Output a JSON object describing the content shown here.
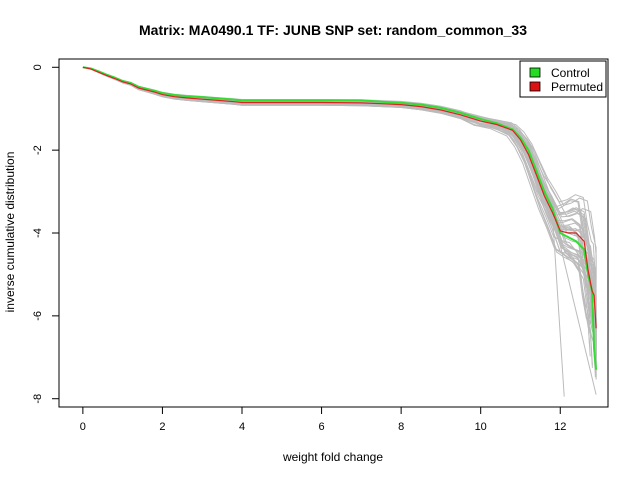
{
  "chart_data": {
    "type": "line",
    "title": "Matrix: MA0490.1 TF: JUNB SNP set: random_common_33",
    "xlabel": "weight fold change",
    "ylabel": "inverse cumulative distribution",
    "xlim": [
      -0.6,
      13.2
    ],
    "ylim": [
      -8.2,
      0.2
    ],
    "xticks": [
      0,
      2,
      4,
      6,
      8,
      10,
      12
    ],
    "yticks": [
      0,
      -2,
      -4,
      -6,
      -8
    ],
    "legend_position": "top-right",
    "legend": [
      {
        "label": "Control",
        "color": "#22dd22"
      },
      {
        "label": "Permuted",
        "color": "#dd1111"
      }
    ],
    "series": [
      {
        "name": "Control",
        "color": "#33dd33",
        "x": [
          0,
          0.2,
          0.4,
          0.6,
          0.8,
          1.0,
          1.2,
          1.4,
          1.6,
          1.8,
          2.0,
          2.3,
          2.6,
          3.0,
          3.4,
          3.8,
          4.0,
          5.0,
          6.0,
          7.0,
          7.5,
          8.0,
          8.5,
          9.0,
          9.5,
          10.0,
          10.4,
          10.8,
          11.0,
          11.2,
          11.4,
          11.6,
          11.8,
          12.0,
          12.2,
          12.4,
          12.6,
          12.7,
          12.8,
          12.85,
          12.9
        ],
        "y": [
          0,
          -0.03,
          -0.1,
          -0.18,
          -0.25,
          -0.33,
          -0.38,
          -0.47,
          -0.52,
          -0.57,
          -0.62,
          -0.67,
          -0.7,
          -0.72,
          -0.75,
          -0.78,
          -0.8,
          -0.8,
          -0.8,
          -0.8,
          -0.83,
          -0.86,
          -0.9,
          -0.98,
          -1.1,
          -1.25,
          -1.35,
          -1.5,
          -1.7,
          -2.0,
          -2.5,
          -3.0,
          -3.4,
          -4.0,
          -4.1,
          -4.2,
          -4.4,
          -5.0,
          -5.4,
          -6.8,
          -7.3
        ]
      },
      {
        "name": "Permuted",
        "color": "#dd2222",
        "x": [
          0,
          0.2,
          0.4,
          0.6,
          0.8,
          1.0,
          1.2,
          1.4,
          1.6,
          1.8,
          2.0,
          2.3,
          2.6,
          3.0,
          3.4,
          3.8,
          4.0,
          5.0,
          6.0,
          7.0,
          7.5,
          8.0,
          8.5,
          9.0,
          9.5,
          10.0,
          10.4,
          10.8,
          11.0,
          11.2,
          11.4,
          11.6,
          11.8,
          12.0,
          12.2,
          12.4,
          12.6,
          12.7,
          12.8,
          12.85,
          12.9
        ],
        "y": [
          0,
          -0.04,
          -0.12,
          -0.2,
          -0.27,
          -0.35,
          -0.4,
          -0.5,
          -0.55,
          -0.6,
          -0.66,
          -0.71,
          -0.74,
          -0.77,
          -0.8,
          -0.83,
          -0.85,
          -0.85,
          -0.85,
          -0.86,
          -0.88,
          -0.9,
          -0.95,
          -1.03,
          -1.15,
          -1.3,
          -1.38,
          -1.52,
          -1.75,
          -2.1,
          -2.6,
          -3.1,
          -3.5,
          -3.95,
          -4.0,
          -4.0,
          -4.2,
          -4.9,
          -5.4,
          -5.5,
          -6.3
        ]
      }
    ],
    "background_lines": {
      "color": "#bbbbbb",
      "count": 40,
      "description_count_note": ""
    }
  }
}
